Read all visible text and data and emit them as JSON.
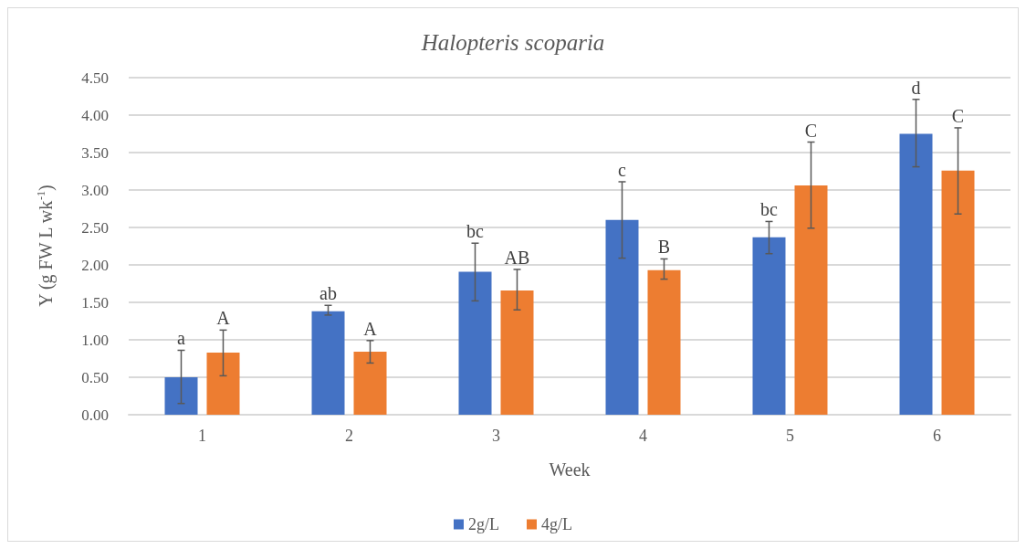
{
  "chart_data": {
    "type": "bar",
    "title": "Halopteris scoparia",
    "xlabel": "Week",
    "ylabel": "Y (g FW L wk$^{-1}$)",
    "categories": [
      "1",
      "2",
      "3",
      "4",
      "5",
      "6"
    ],
    "series": [
      {
        "name": "2g/L",
        "color": "#4472c4",
        "values": [
          0.5,
          1.38,
          1.91,
          2.6,
          2.37,
          3.75
        ],
        "errors": [
          [
            0.15,
            0.86
          ],
          [
            1.33,
            1.46
          ],
          [
            1.52,
            2.29
          ],
          [
            2.09,
            3.11
          ],
          [
            2.15,
            2.58
          ],
          [
            3.31,
            4.21
          ]
        ],
        "value_labels": [
          "a",
          "ab",
          "bc",
          "c",
          "bc",
          "d"
        ]
      },
      {
        "name": "4g/L",
        "color": "#ed7d31",
        "values": [
          0.83,
          0.84,
          1.66,
          1.93,
          3.06,
          3.26
        ],
        "errors": [
          [
            0.52,
            1.13
          ],
          [
            0.69,
            0.99
          ],
          [
            1.4,
            1.94
          ],
          [
            1.81,
            2.08
          ],
          [
            2.49,
            3.64
          ],
          [
            2.68,
            3.83
          ]
        ],
        "value_labels": [
          "A",
          "A",
          "AB",
          "B",
          "C",
          "C"
        ]
      }
    ],
    "ylim": [
      0,
      4.5
    ],
    "yticks": [
      {
        "value": 0,
        "label": "0.00"
      },
      {
        "value": 0.5,
        "label": "0.50"
      },
      {
        "value": 1,
        "label": "1.00"
      },
      {
        "value": 1.5,
        "label": "1.50"
      },
      {
        "value": 2,
        "label": "2.00"
      },
      {
        "value": 2.5,
        "label": "2.50"
      },
      {
        "value": 3,
        "label": "3.00"
      },
      {
        "value": 3.5,
        "label": "3.50"
      },
      {
        "value": 4,
        "label": "4.00"
      },
      {
        "value": 4.5,
        "label": "4.50"
      }
    ],
    "grid": "y",
    "legend": "bottom"
  }
}
